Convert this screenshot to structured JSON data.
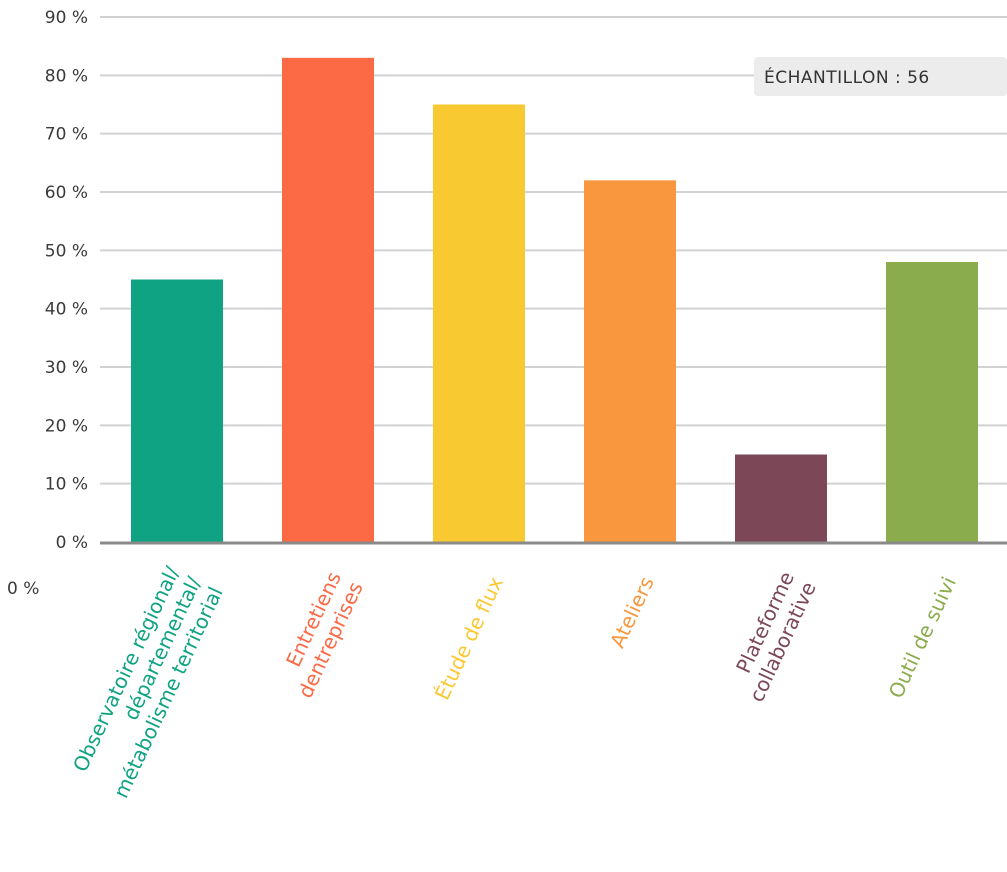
{
  "chart_data": {
    "type": "bar",
    "title": "",
    "xlabel": "",
    "ylabel": "",
    "ylim": [
      0,
      90
    ],
    "yticks": [
      "0 %",
      "10 %",
      "20 %",
      "30 %",
      "40 %",
      "50 %",
      "60 %",
      "70 %",
      "80 %",
      "90 %"
    ],
    "grid": true,
    "legend": "none",
    "categories": [
      "Observatoire régional/ départemental/ métabolisme territorial",
      "Entretiens dentreprises",
      "Étude de flux",
      "Ateliers",
      "Plateforme collaborative",
      "Outil de suivi"
    ],
    "category_lines": [
      [
        "Observatoire régional/",
        "départemental/",
        "métabolisme territorial"
      ],
      [
        "Entretiens",
        "dentreprises"
      ],
      [
        "Étude de flux"
      ],
      [
        "Ateliers"
      ],
      [
        "Plateforme",
        "collaborative"
      ],
      [
        "Outil de suivi"
      ]
    ],
    "values": [
      45,
      83,
      75,
      62,
      15,
      48
    ],
    "colors": [
      "#0fa383",
      "#fb6a45",
      "#f9c932",
      "#f8973d",
      "#7c4858",
      "#8aac4c"
    ],
    "annotation": "ÉCHANTILLON : 56",
    "stray_label": "0 %"
  }
}
